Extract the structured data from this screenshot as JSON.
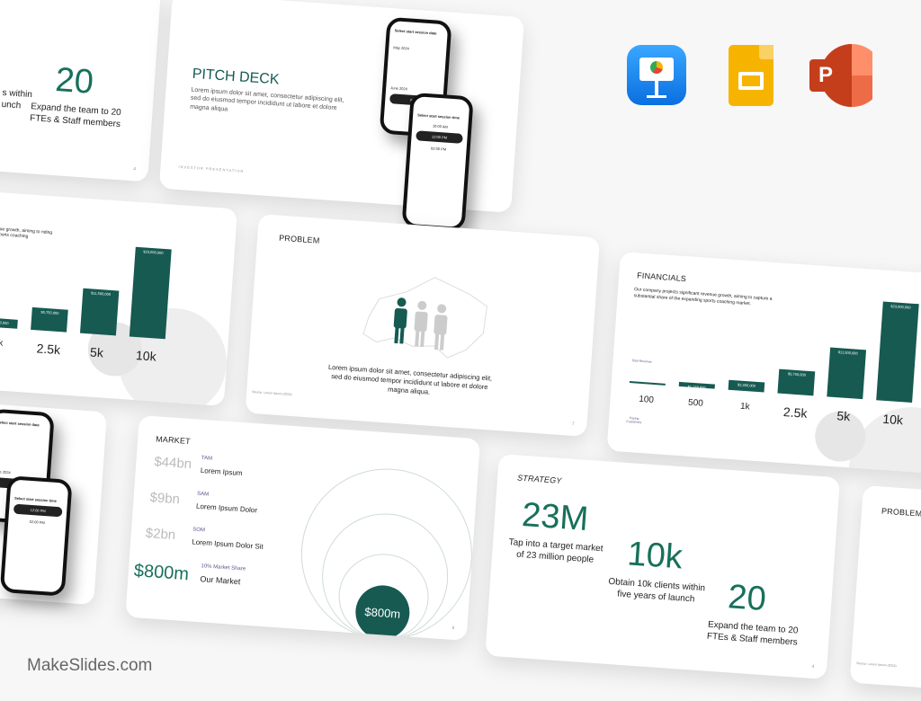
{
  "brand": "MakeSlides.com",
  "apps": [
    {
      "name": "Keynote",
      "icon": "keynote-icon",
      "color": "#1c8ef0"
    },
    {
      "name": "Google Slides",
      "icon": "google-slides-icon",
      "color": "#f6b400"
    },
    {
      "name": "PowerPoint",
      "icon": "powerpoint-icon",
      "color": "#d24726"
    }
  ],
  "accent": "#165a52",
  "strategy": {
    "title": "STRATEGY",
    "stats": [
      {
        "value": "23M",
        "caption": "Tap into a target market of 23 million people"
      },
      {
        "value": "10k",
        "caption": "Obtain 10k clients within five years of launch"
      },
      {
        "value": "20",
        "caption": "Expand the team to 20 FTEs & Staff members"
      }
    ],
    "page": "4"
  },
  "strategy_partial": {
    "value_fragment": "k",
    "caption_fragment": "s within unch",
    "stat": "20",
    "stat_caption": "Expand the team to 20 FTEs & Staff members",
    "page": "4"
  },
  "pitch": {
    "title": "PITCH DECK",
    "body": "Lorem ipsum dolor sit amet, consectetur adipiscing elit, sed do eiusmod tempor incididunt ut labore et dolore magna aliqua",
    "footer": "INVESTOR PRESENTATION"
  },
  "phone": {
    "screen1_title": "Select start session date",
    "month1": "May 2024",
    "month2": "June 2024",
    "button": "Next",
    "screen2_title": "Select start session time",
    "times": [
      "10:00 AM",
      "12:00 PM",
      "02:00 PM"
    ]
  },
  "problem": {
    "title": "PROBLEM",
    "body": "Lorem ipsum dolor sit amet, consectetur adipiscing elit, sed do eiusmod tempor incididunt ut labore et dolore magna aliqua.",
    "source": "Source: Lorem Ipsum (2024)",
    "page": "7"
  },
  "financials": {
    "title": "FINANCIALS",
    "body": "Our company projects significant revenue growth, aiming to capture a substantial share of the expanding sports coaching market.",
    "revenue_label": "Total Revenue",
    "customers_label": "Paying Customers",
    "page": "10"
  },
  "financials_partial": {
    "body_fragment": "nue growth, aiming to nding sports coaching"
  },
  "chart_data": {
    "type": "bar",
    "categories": [
      "100",
      "500",
      "1k",
      "2.5k",
      "5k",
      "10k"
    ],
    "values": [
      230000,
      1150000,
      2300000,
      5750000,
      11500000,
      23000000
    ],
    "labels": [
      "",
      "$1,150,000",
      "$2,300,000",
      "$5,750,000",
      "$11,500,000",
      "$23,000,000"
    ],
    "xlabel": "Paying Customers",
    "ylabel": "Total Revenue"
  },
  "market": {
    "title": "MARKET",
    "rows": [
      {
        "value": "$44bn",
        "tag": "TAM",
        "label": "Lorem Ipsum"
      },
      {
        "value": "$9bn",
        "tag": "SAM",
        "label": "Lorem Ipsum Dolor"
      },
      {
        "value": "$2bn",
        "tag": "SOM",
        "label": "Lorem Ipsum Dolor Sit"
      },
      {
        "value": "$800m",
        "tag": "10% Market Share",
        "label": "Our Market"
      }
    ],
    "bubble": "$800m",
    "page": "6"
  },
  "problem_partial": {
    "title": "PROBLEM",
    "source": "Source: Lorem Ipsum (2024)"
  }
}
